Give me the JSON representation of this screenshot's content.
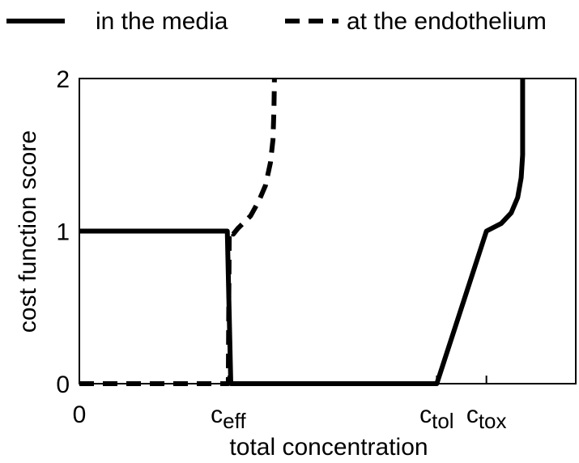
{
  "chart_data": {
    "type": "line",
    "title": "",
    "xlabel": "total concentration",
    "ylabel": "cost function score",
    "xlim": [
      0,
      10
    ],
    "ylim": [
      0,
      2
    ],
    "grid": false,
    "legend_position": "top",
    "x_ticks": [
      {
        "x": 0,
        "label": "0"
      },
      {
        "x": 3,
        "label": "c",
        "sub": "eff"
      },
      {
        "x": 7.2,
        "label": "c",
        "sub": "tol"
      },
      {
        "x": 8.2,
        "label": "c",
        "sub": "tox"
      }
    ],
    "y_ticks": [
      {
        "y": 0,
        "label": "0"
      },
      {
        "y": 1,
        "label": "1"
      },
      {
        "y": 2,
        "label": "2"
      }
    ],
    "series": [
      {
        "name": "in the media",
        "style": "solid",
        "points": [
          [
            0,
            1
          ],
          [
            2.98,
            1
          ],
          [
            3.05,
            0
          ],
          [
            7.2,
            0
          ],
          [
            8.2,
            1
          ],
          [
            8.5,
            1.05
          ],
          [
            8.7,
            1.12
          ],
          [
            8.83,
            1.22
          ],
          [
            8.9,
            1.35
          ],
          [
            8.93,
            1.5
          ],
          [
            8.93,
            2
          ]
        ]
      },
      {
        "name": "at the endothelium",
        "style": "dashed",
        "points": [
          [
            0,
            0
          ],
          [
            3.0,
            0
          ],
          [
            3.02,
            1
          ],
          [
            3.1,
            0.98
          ],
          [
            3.2,
            1.02
          ],
          [
            3.45,
            1.1
          ],
          [
            3.62,
            1.2
          ],
          [
            3.75,
            1.3
          ],
          [
            3.85,
            1.45
          ],
          [
            3.9,
            1.6
          ],
          [
            3.92,
            1.8
          ],
          [
            3.93,
            2
          ]
        ]
      }
    ]
  },
  "colors": {
    "line": "#000000",
    "background": "#ffffff"
  }
}
